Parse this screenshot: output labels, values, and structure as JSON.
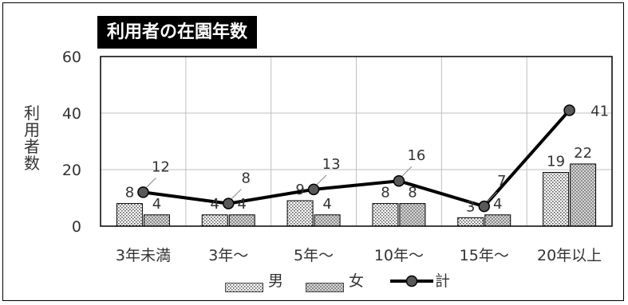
{
  "chart_data": {
    "type": "bar",
    "title": "利用者の在園年数",
    "ylabel": "利用者数",
    "ylim": [
      0,
      60
    ],
    "yticks": [
      0,
      20,
      40,
      60
    ],
    "grid": true,
    "legend_position": "bottom",
    "categories": [
      "3年未満",
      "3年〜",
      "5年〜",
      "10年〜",
      "15年〜",
      "20年以上"
    ],
    "series": [
      {
        "name": "男",
        "kind": "bar",
        "pattern": "dots",
        "values": [
          8,
          4,
          9,
          8,
          3,
          19
        ]
      },
      {
        "name": "女",
        "kind": "bar",
        "pattern": "crosshatch",
        "values": [
          4,
          4,
          4,
          8,
          4,
          22
        ]
      },
      {
        "name": "計",
        "kind": "line",
        "color": "#000000",
        "marker_color": "#595959",
        "values": [
          12,
          8,
          13,
          16,
          7,
          41
        ]
      }
    ]
  },
  "ylabel_chars": [
    "利",
    "用",
    "者",
    "数"
  ]
}
